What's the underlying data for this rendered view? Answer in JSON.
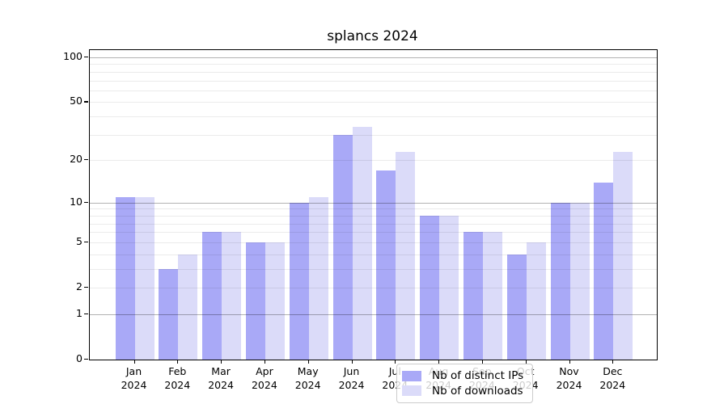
{
  "title": "splancs 2024",
  "chart_data": {
    "type": "bar",
    "title": "splancs 2024",
    "x_tick_labels": [
      "Jan 2024",
      "Feb 2024",
      "Mar 2024",
      "Apr 2024",
      "May 2024",
      "Jun 2024",
      "Jul 2024",
      "Aug 2024",
      "Sep 2024",
      "Oct 2024",
      "Nov 2024",
      "Dec 2024"
    ],
    "series": [
      {
        "name": "Nb of distinct IPs",
        "color": "#a9a9f7",
        "values": [
          11,
          3,
          6,
          5,
          10,
          30,
          17,
          8,
          6,
          4,
          10,
          14
        ]
      },
      {
        "name": "Nb of downloads",
        "color": "#dbdbf9",
        "values": [
          11,
          4,
          6,
          5,
          11,
          34,
          23,
          8,
          6,
          5,
          10,
          23
        ]
      }
    ],
    "y_scale": "log10(1+x)",
    "y_tick_values": [
      0,
      1,
      2,
      5,
      10,
      20,
      50,
      100
    ],
    "ylim": [
      0,
      115
    ],
    "grid": "horizontal; major lines at 1,10,100; minor lines at 2-9,20-90; drawn over bars",
    "legend_position": "lower center"
  },
  "colors": {
    "background": "#ffffff",
    "bar_distinct_ips": "#a9a9f7",
    "bar_downloads": "#dbdbf9",
    "axis": "#000000",
    "grid_major": "#b3b3b3",
    "grid_minor": "#ececec",
    "legend_border": "#cccccc",
    "legend_background": "rgba(255,255,255,0.8)"
  }
}
